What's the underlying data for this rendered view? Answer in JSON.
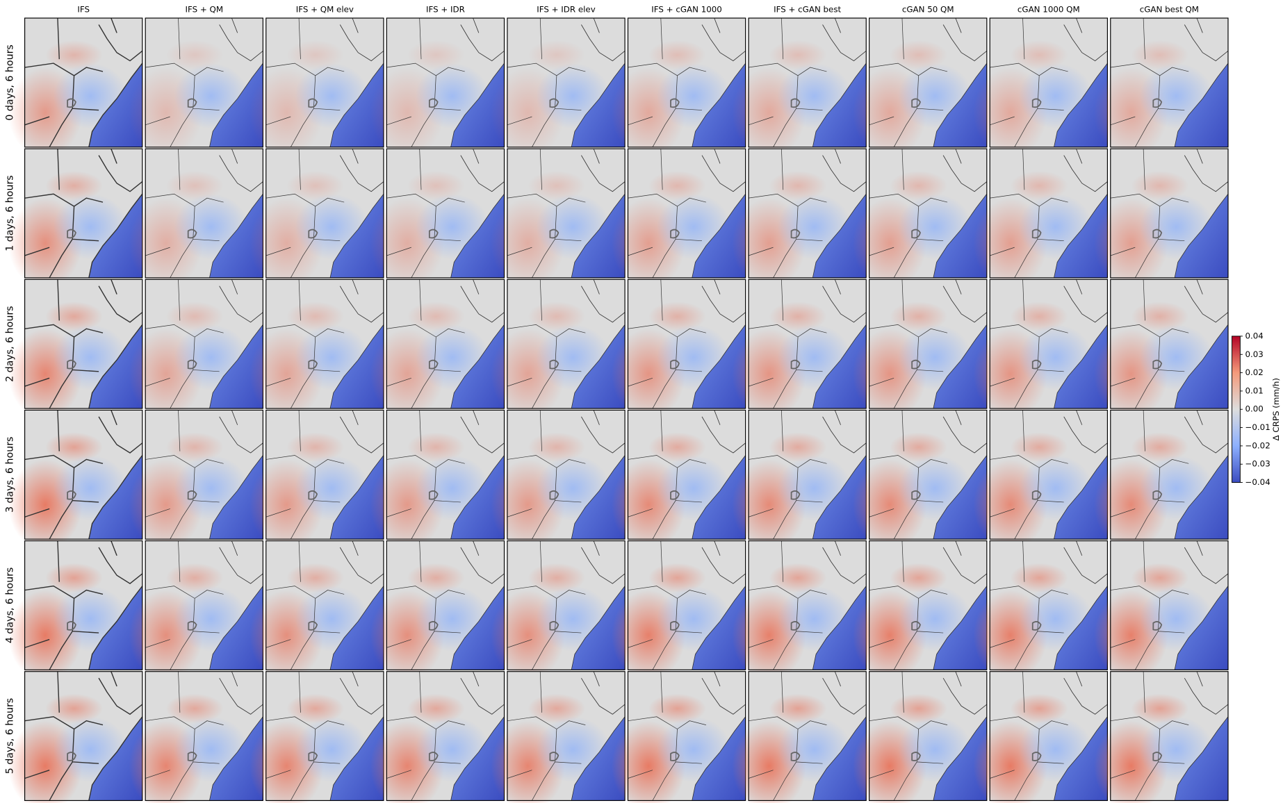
{
  "figure": {
    "columns": [
      "IFS",
      "IFS + QM",
      "IFS + QM elev",
      "IFS + IDR",
      "IFS + IDR elev",
      "IFS + cGAN 1000",
      "IFS + cGAN best",
      "cGAN 50 QM",
      "cGAN 1000 QM",
      "cGAN best QM"
    ],
    "rows": [
      "0 days, 6 hours",
      "1 days, 6 hours",
      "2 days,  6 hours",
      "3 days, 6 hours",
      "4 days, 6 hours",
      "5 days, 6 hours"
    ],
    "colorbar": {
      "label": "Δ CRPS (mm/h)",
      "lim": [
        -0.04,
        0.04
      ],
      "ticks": [
        {
          "value": -0.04,
          "label": "−0.04"
        },
        {
          "value": -0.03,
          "label": "−0.03"
        },
        {
          "value": -0.02,
          "label": "−0.02"
        },
        {
          "value": -0.01,
          "label": "−0.01"
        },
        {
          "value": 0,
          "label": "0.00"
        },
        0.01,
        0.02,
        0.03,
        0.04
      ]
    }
  }
}
